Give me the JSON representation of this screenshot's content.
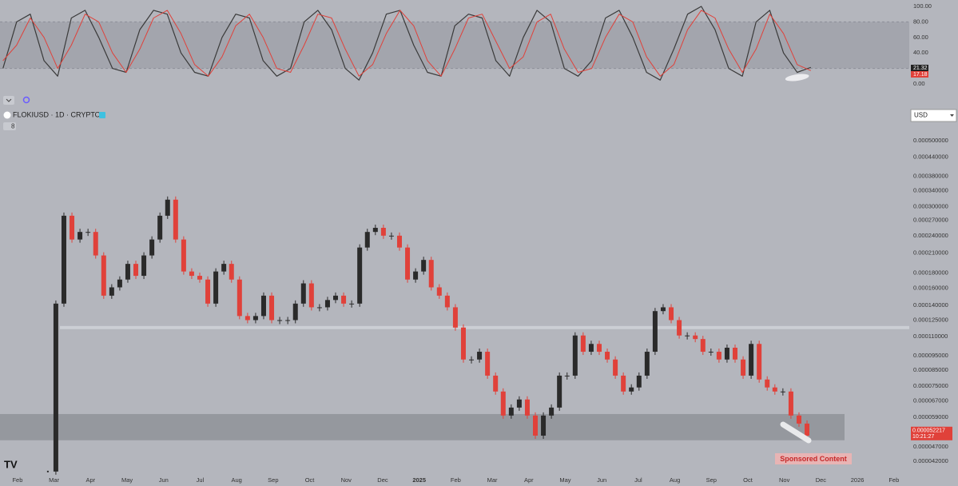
{
  "chart_data": [
    {
      "type": "line",
      "xlim": [
        -0.48,
        24.42
      ],
      "ylim": [
        0,
        100
      ],
      "yticks": [
        {
          "value": 100,
          "label": "100.00"
        },
        {
          "value": 80,
          "label": "80.00"
        },
        {
          "value": 60,
          "label": "60.00"
        },
        {
          "value": 40,
          "label": "40.00"
        },
        {
          "value": 20,
          "label": "20.00"
        },
        {
          "value": 0,
          "label": "0.00"
        }
      ],
      "band": [
        20,
        80
      ],
      "x": [
        -0.4,
        -0.025,
        0.35,
        0.725,
        1.1,
        1.475,
        1.85,
        2.225,
        2.6,
        2.975,
        3.35,
        3.725,
        4.1,
        4.475,
        4.85,
        5.225,
        5.6,
        5.975,
        6.35,
        6.725,
        7.1,
        7.475,
        7.85,
        8.225,
        8.6,
        8.975,
        9.35,
        9.725,
        10.1,
        10.475,
        10.85,
        11.225,
        11.6,
        11.975,
        12.35,
        12.725,
        13.1,
        13.475,
        13.85,
        14.225,
        14.6,
        14.975,
        15.35,
        15.725,
        16.1,
        16.475,
        16.85,
        17.225,
        17.6,
        17.975,
        18.35,
        18.725,
        19.1,
        19.475,
        19.85,
        20.225,
        20.6,
        20.975,
        21.35,
        21.725
      ],
      "series": [
        {
          "color": "#3a3a3a",
          "values": [
            20,
            80,
            90,
            30,
            10,
            85,
            95,
            60,
            20,
            15,
            70,
            95,
            90,
            40,
            15,
            10,
            60,
            90,
            85,
            30,
            10,
            20,
            80,
            95,
            70,
            20,
            5,
            40,
            90,
            95,
            50,
            15,
            10,
            75,
            90,
            85,
            30,
            10,
            60,
            95,
            80,
            20,
            10,
            30,
            85,
            95,
            60,
            15,
            5,
            45,
            90,
            100,
            70,
            20,
            10,
            80,
            95,
            40,
            15,
            21.32
          ]
        },
        {
          "color": "#e0413a",
          "values": [
            30,
            50,
            85,
            60,
            20,
            50,
            90,
            80,
            40,
            15,
            45,
            85,
            95,
            65,
            25,
            10,
            35,
            75,
            90,
            60,
            20,
            15,
            50,
            90,
            85,
            45,
            10,
            25,
            65,
            95,
            75,
            30,
            10,
            45,
            85,
            90,
            55,
            20,
            35,
            80,
            90,
            45,
            15,
            20,
            60,
            90,
            80,
            35,
            10,
            25,
            70,
            95,
            85,
            45,
            15,
            45,
            90,
            65,
            25,
            17.18
          ]
        }
      ]
    },
    {
      "type": "candlestick",
      "symbol": "FLOKIUSD · 1D · CRYPTO",
      "indicator_count": 8,
      "currency": "USD",
      "log_scale": true,
      "xlim": [
        -0.48,
        24.42
      ],
      "ylim": [
        3.76e-05,
        0.000644
      ],
      "xticks": [
        {
          "value": 0,
          "label": "Feb"
        },
        {
          "value": 1,
          "label": "Mar"
        },
        {
          "value": 2,
          "label": "Apr"
        },
        {
          "value": 3,
          "label": "May"
        },
        {
          "value": 4,
          "label": "Jun"
        },
        {
          "value": 5,
          "label": "Jul"
        },
        {
          "value": 6,
          "label": "Aug"
        },
        {
          "value": 7,
          "label": "Sep"
        },
        {
          "value": 8,
          "label": "Oct"
        },
        {
          "value": 9,
          "label": "Nov"
        },
        {
          "value": 10,
          "label": "Dec"
        },
        {
          "value": 11,
          "label": "2025"
        },
        {
          "value": 12,
          "label": "Feb"
        },
        {
          "value": 13,
          "label": "Mar"
        },
        {
          "value": 14,
          "label": "Apr"
        },
        {
          "value": 15,
          "label": "May"
        },
        {
          "value": 16,
          "label": "Jun"
        },
        {
          "value": 17,
          "label": "Jul"
        },
        {
          "value": 18,
          "label": "Aug"
        },
        {
          "value": 19,
          "label": "Sep"
        },
        {
          "value": 20,
          "label": "Oct"
        },
        {
          "value": 21,
          "label": "Nov"
        },
        {
          "value": 22,
          "label": "Dec"
        },
        {
          "value": 23,
          "label": "2026"
        },
        {
          "value": 24,
          "label": "Feb"
        }
      ],
      "yticks": [
        {
          "value": 0.0005,
          "label": "0.000500000"
        },
        {
          "value": 0.00044,
          "label": "0.000440000"
        },
        {
          "value": 0.00038,
          "label": "0.000380000"
        },
        {
          "value": 0.00034,
          "label": "0.000340000"
        },
        {
          "value": 0.0003,
          "label": "0.000300000"
        },
        {
          "value": 0.00027,
          "label": "0.000270000"
        },
        {
          "value": 0.00024,
          "label": "0.000240000"
        },
        {
          "value": 0.00021,
          "label": "0.000210000"
        },
        {
          "value": 0.00018,
          "label": "0.000180000"
        },
        {
          "value": 0.00016,
          "label": "0.000160000"
        },
        {
          "value": 0.00014,
          "label": "0.000140000"
        },
        {
          "value": 0.000125,
          "label": "0.000125000"
        },
        {
          "value": 0.00011,
          "label": "0.000110000"
        },
        {
          "value": 9.5e-05,
          "label": "0.000095000"
        },
        {
          "value": 8.5e-05,
          "label": "0.000085000"
        },
        {
          "value": 7.5e-05,
          "label": "0.000075000"
        },
        {
          "value": 6.7e-05,
          "label": "0.000067000"
        },
        {
          "value": 5.9e-05,
          "label": "0.000059000"
        },
        {
          "value": 4.7e-05,
          "label": "0.000047000"
        },
        {
          "value": 4.2e-05,
          "label": "0.000042000"
        }
      ],
      "level": 0.000118,
      "zone": [
        4.94e-05,
        6.05e-05
      ],
      "up_color": "#2a2a2a",
      "down_color": "#e0413a",
      "x": [
        0.83,
        1.05,
        1.27,
        1.49,
        1.71,
        1.93,
        2.14,
        2.36,
        2.58,
        2.8,
        3.02,
        3.24,
        3.46,
        3.68,
        3.9,
        4.11,
        4.33,
        4.55,
        4.77,
        4.99,
        5.21,
        5.43,
        5.65,
        5.86,
        6.08,
        6.3,
        6.52,
        6.74,
        6.96,
        7.18,
        7.4,
        7.61,
        7.83,
        8.05,
        8.27,
        8.49,
        8.71,
        8.93,
        9.15,
        9.37,
        9.58,
        9.8,
        10.02,
        10.24,
        10.46,
        10.68,
        10.9,
        11.12,
        11.33,
        11.55,
        11.77,
        11.99,
        12.21,
        12.43,
        12.65,
        12.87,
        13.09,
        13.3,
        13.52,
        13.74,
        13.96,
        14.18,
        14.4,
        14.62,
        14.84,
        15.05,
        15.27,
        15.49,
        15.71,
        15.93,
        16.15,
        16.37,
        16.59,
        16.81,
        17.02,
        17.24,
        17.46,
        17.68,
        17.9,
        18.12,
        18.34,
        18.56,
        18.77,
        18.99,
        19.21,
        19.43,
        19.65,
        19.87,
        20.09,
        20.31,
        20.53,
        20.74,
        20.96,
        21.18,
        21.4,
        21.62
      ],
      "close": [
        3.88e-05,
        0.000142,
        0.00028,
        0.000233,
        0.000247,
        0.000247,
        0.000206,
        0.000151,
        0.000161,
        0.000171,
        0.000193,
        0.000176,
        0.000206,
        0.000233,
        0.00028,
        0.000317,
        0.000233,
        0.000182,
        0.000176,
        0.000171,
        0.000142,
        0.000182,
        0.000193,
        0.000171,
        0.000129,
        0.000125,
        0.000129,
        0.000151,
        0.000125,
        0.000125,
        0.000125,
        0.000142,
        0.000166,
        0.000138,
        0.000138,
        0.000146,
        0.000151,
        0.000142,
        0.000142,
        0.000219,
        0.000247,
        0.000255,
        0.00024,
        0.00024,
        0.000219,
        0.000171,
        0.000182,
        0.000199,
        0.000161,
        0.000151,
        0.000138,
        0.000118,
        9.22e-05,
        9.22e-05,
        9.79e-05,
        8.14e-05,
        7.2e-05,
        5.98e-05,
        6.36e-05,
        6.77e-05,
        5.98e-05,
        5.12e-05,
        5.98e-05,
        6.36e-05,
        8.14e-05,
        8.14e-05,
        0.000111,
        9.79e-05,
        0.000104,
        9.79e-05,
        9.22e-05,
        8.14e-05,
        7.2e-05,
        7.43e-05,
        8.14e-05,
        9.79e-05,
        0.000134,
        0.000138,
        0.000125,
        0.000111,
        0.000111,
        0.000108,
        9.79e-05,
        9.79e-05,
        9.22e-05,
        0.000101,
        9.22e-05,
        8.14e-05,
        0.000104,
        7.9e-05,
        7.43e-05,
        7.2e-05,
        7.2e-05,
        5.98e-05,
        5.62e-05,
        5.12e-05
      ],
      "last_price": 5.2217e-05,
      "countdown": "10:21:27",
      "annotation": "Sponsored Content"
    }
  ]
}
